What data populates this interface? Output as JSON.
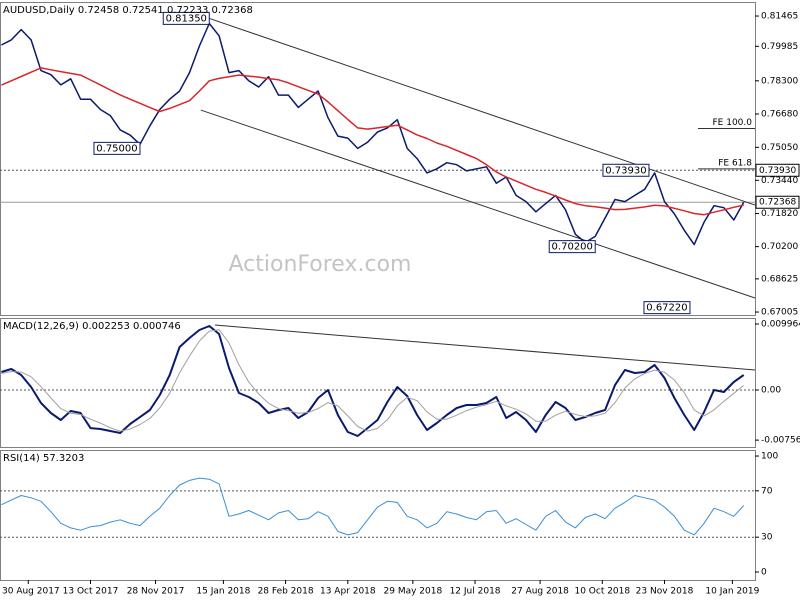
{
  "chart_data": [
    {
      "type": "line",
      "title": "AUDUSD,Daily  0.72458 0.72541 0.72233 0.72368",
      "watermark": "ActionForex.com",
      "x": [
        "2017-08-11",
        "2017-08-18",
        "2017-08-25",
        "2017-09-01",
        "2017-09-08",
        "2017-09-15",
        "2017-09-22",
        "2017-09-29",
        "2017-10-06",
        "2017-10-13",
        "2017-10-20",
        "2017-10-27",
        "2017-11-03",
        "2017-11-10",
        "2017-11-17",
        "2017-11-24",
        "2017-12-01",
        "2017-12-08",
        "2017-12-15",
        "2017-12-22",
        "2017-12-29",
        "2018-01-05",
        "2018-01-12",
        "2018-01-19",
        "2018-01-26",
        "2018-02-02",
        "2018-02-09",
        "2018-02-16",
        "2018-02-23",
        "2018-03-02",
        "2018-03-09",
        "2018-03-16",
        "2018-03-23",
        "2018-03-30",
        "2018-04-06",
        "2018-04-13",
        "2018-04-20",
        "2018-04-27",
        "2018-05-04",
        "2018-05-11",
        "2018-05-18",
        "2018-05-25",
        "2018-06-01",
        "2018-06-08",
        "2018-06-15",
        "2018-06-22",
        "2018-06-29",
        "2018-07-06",
        "2018-07-13",
        "2018-07-20",
        "2018-07-27",
        "2018-08-03",
        "2018-08-10",
        "2018-08-17",
        "2018-08-24",
        "2018-08-31",
        "2018-09-07",
        "2018-09-14",
        "2018-09-21",
        "2018-09-28",
        "2018-10-05",
        "2018-10-12",
        "2018-10-19",
        "2018-10-26",
        "2018-11-02",
        "2018-11-09",
        "2018-11-16",
        "2018-11-23",
        "2018-11-30",
        "2018-12-07",
        "2018-12-14",
        "2018-12-21",
        "2018-12-28",
        "2019-01-04",
        "2019-01-11",
        "2019-01-18"
      ],
      "xlim": [
        "2017-08-10",
        "2019-01-26"
      ],
      "xticks": [
        {
          "value": "2017-08-30",
          "label": "30 Aug 2017"
        },
        {
          "value": "2017-10-13",
          "label": "13 Oct 2017"
        },
        {
          "value": "2017-11-28",
          "label": "28 Nov 2017"
        },
        {
          "value": "2018-01-15",
          "label": "15 Jan 2018"
        },
        {
          "value": "2018-02-28",
          "label": "28 Feb 2018"
        },
        {
          "value": "2018-04-13",
          "label": "13 Apr 2018"
        },
        {
          "value": "2018-05-29",
          "label": "29 May 2018"
        },
        {
          "value": "2018-07-12",
          "label": "12 Jul 2018"
        },
        {
          "value": "2018-08-27",
          "label": "27 Aug 2018"
        },
        {
          "value": "2018-10-10",
          "label": "10 Oct 2018"
        },
        {
          "value": "2018-11-23",
          "label": "23 Nov 2018"
        },
        {
          "value": "2019-01-10",
          "label": "10 Jan 2019"
        }
      ],
      "ylim": [
        0.6686,
        0.8215
      ],
      "yticks": [
        0.81465,
        0.79985,
        {
          "value": 0.783,
          "label": "0.78300"
        },
        {
          "value": 0.7668,
          "label": "0.76680"
        },
        {
          "value": 0.7505,
          "label": "0.75050"
        },
        {
          "value": 0.7344,
          "label": "0.73440"
        },
        {
          "value": 0.7182,
          "label": "0.71820"
        },
        {
          "value": 0.702,
          "label": "0.70200"
        },
        0.68625,
        0.67005
      ],
      "series": [
        {
          "color": "#0b1b6b",
          "values": [
            0.8005,
            0.803,
            0.808,
            0.803,
            0.788,
            0.786,
            0.781,
            0.784,
            0.774,
            0.774,
            0.769,
            0.766,
            0.759,
            0.7565,
            0.752,
            0.761,
            0.769,
            0.774,
            0.778,
            0.787,
            0.8,
            0.811,
            0.805,
            0.787,
            0.788,
            0.783,
            0.78,
            0.785,
            0.776,
            0.776,
            0.77,
            0.774,
            0.778,
            0.765,
            0.756,
            0.755,
            0.75,
            0.753,
            0.758,
            0.76,
            0.764,
            0.75,
            0.745,
            0.738,
            0.74,
            0.743,
            0.742,
            0.739,
            0.74,
            0.741,
            0.733,
            0.736,
            0.727,
            0.724,
            0.719,
            0.723,
            0.727,
            0.72,
            0.708,
            0.704,
            0.707,
            0.716,
            0.725,
            0.724,
            0.727,
            0.73,
            0.738,
            0.724,
            0.718,
            0.71,
            0.703,
            0.714,
            0.722,
            0.721,
            0.715,
            0.72368
          ]
        },
        {
          "color": "#d9262b",
          "values": [
            0.7809,
            0.783,
            0.7851,
            0.7872,
            0.7893,
            0.7884,
            0.7875,
            0.7866,
            0.7858,
            0.7834,
            0.781,
            0.7785,
            0.7761,
            0.774,
            0.772,
            0.7699,
            0.768,
            0.7695,
            0.7714,
            0.7733,
            0.778,
            0.783,
            0.7842,
            0.785,
            0.7858,
            0.7853,
            0.7848,
            0.7841,
            0.7835,
            0.782,
            0.7801,
            0.7783,
            0.7765,
            0.7727,
            0.7684,
            0.7641,
            0.76,
            0.7594,
            0.76,
            0.7607,
            0.7613,
            0.759,
            0.7566,
            0.7548,
            0.7526,
            0.751,
            0.749,
            0.747,
            0.745,
            0.742,
            0.7385,
            0.736,
            0.734,
            0.732,
            0.73,
            0.7285,
            0.7267,
            0.7248,
            0.723,
            0.722,
            0.7215,
            0.7208,
            0.7201,
            0.7202,
            0.7208,
            0.7214,
            0.7222,
            0.7219,
            0.7207,
            0.7195,
            0.7182,
            0.7176,
            0.7188,
            0.72,
            0.7212,
            0.7223
          ]
        }
      ],
      "levels": [
        {
          "value": 0.7393,
          "label": "0.73930",
          "style": "dotted"
        },
        {
          "value": 0.72368,
          "style": "solid"
        }
      ],
      "fib_levels": [
        {
          "value": 0.7597,
          "label": "FE 100.0"
        },
        {
          "value": 0.74,
          "label": "FE 61.8"
        }
      ],
      "annotations": [
        {
          "value": 0.8135,
          "label": "0.81350",
          "x": "2018-01-05"
        },
        {
          "value": 0.75,
          "label": "0.75000",
          "x": "2017-11-17"
        },
        {
          "value": 0.7393,
          "label": "0.73930",
          "x": "2018-11-12"
        },
        {
          "value": 0.702,
          "label": "0.70200",
          "x": "2018-10-05"
        },
        {
          "value": 0.6722,
          "label": "0.67220",
          "x": "2018-12-11"
        }
      ],
      "trendlines": [
        {
          "x": [
            "2018-01-02",
            "2019-01-26"
          ],
          "values": [
            0.8142,
            0.7223
          ]
        },
        {
          "x": [
            "2017-12-30",
            "2019-01-26"
          ],
          "values": [
            0.7687,
            0.6769
          ]
        }
      ]
    },
    {
      "type": "line",
      "title": "MACD(12,26,9) 0.002253 0.000746",
      "ylim": [
        -0.0086,
        0.01087
      ],
      "yticks": [
        0.009964,
        {
          "value": 0,
          "label": "0.00"
        },
        -0.00756
      ],
      "levels": [
        {
          "value": 0,
          "style": "dotted"
        }
      ],
      "series": [
        {
          "color": "#0a1a6e",
          "width": 2,
          "values": [
            0.00272,
            0.00317,
            0.00226,
            0.00045,
            -0.00196,
            -0.00347,
            -0.00453,
            -0.00317,
            -0.00347,
            -0.00574,
            -0.00589,
            -0.00619,
            -0.00649,
            -0.00513,
            -0.00408,
            -0.00302,
            -0.00075,
            0.00226,
            0.00649,
            0.00785,
            0.00906,
            0.00966,
            0.00845,
            0.00332,
            -0.00045,
            -0.00106,
            -0.00196,
            -0.00347,
            -0.00302,
            -0.00272,
            -0.00423,
            -0.00332,
            -0.00121,
            0,
            -0.00377,
            -0.00634,
            -0.00694,
            -0.00574,
            -0.00453,
            -0.00181,
            0.00045,
            -0.00091,
            -0.00377,
            -0.00604,
            -0.00498,
            -0.00377,
            -0.00272,
            -0.00226,
            -0.00226,
            -0.00196,
            -0.00106,
            -0.00423,
            -0.00332,
            -0.00453,
            -0.00634,
            -0.00377,
            -0.00181,
            -0.00272,
            -0.00453,
            -0.00408,
            -0.00347,
            -0.00302,
            0.00075,
            0.00302,
            0.00257,
            0.00272,
            0.00377,
            0.00181,
            -0.00121,
            -0.00377,
            -0.00604,
            -0.00332,
            0,
            -0.0003,
            0.00121,
            0.00226
          ]
        },
        {
          "color": "#a0a0a0",
          "width": 1,
          "values": [
            0.0025,
            0.0028,
            0.0027,
            0.002,
            0.0005,
            -0.0012,
            -0.0028,
            -0.0035,
            -0.0037,
            -0.0044,
            -0.005,
            -0.0057,
            -0.0062,
            -0.0059,
            -0.0052,
            -0.0043,
            -0.0027,
            -0.0005,
            0.0026,
            0.0051,
            0.0074,
            0.0089,
            0.0091,
            0.0071,
            0.0038,
            0.0012,
            -0.0006,
            -0.002,
            -0.0028,
            -0.0031,
            -0.0035,
            -0.0034,
            -0.0028,
            -0.0019,
            -0.0024,
            -0.0039,
            -0.0055,
            -0.0062,
            -0.0058,
            -0.0045,
            -0.0024,
            -0.0011,
            -0.0016,
            -0.0033,
            -0.0044,
            -0.0044,
            -0.0038,
            -0.0031,
            -0.0026,
            -0.0022,
            -0.0017,
            -0.0024,
            -0.0029,
            -0.0036,
            -0.0047,
            -0.0047,
            -0.0038,
            -0.0032,
            -0.0037,
            -0.004,
            -0.0039,
            -0.0035,
            -0.0019,
            0.0003,
            0.0017,
            0.0025,
            0.003,
            0.0027,
            0.0015,
            -0.0004,
            -0.003,
            -0.0039,
            -0.003,
            -0.0017,
            -0.0005,
            0.0007
          ]
        }
      ],
      "trendlines": [
        {
          "x": [
            "2018-01-09",
            "2019-01-26"
          ],
          "values": [
            0.00981,
            0.00302
          ]
        }
      ]
    },
    {
      "type": "line",
      "title": "RSI(14) 57.3203",
      "ylim": [
        -6.9,
        105.2
      ],
      "yticks": [
        100,
        70,
        30,
        0
      ],
      "levels": [
        {
          "value": 70,
          "style": "dotted"
        },
        {
          "value": 30,
          "style": "dotted"
        }
      ],
      "series": [
        {
          "color": "#3a8fd6",
          "width": 1,
          "values": [
            58,
            62,
            66,
            64,
            61,
            52,
            42,
            38,
            36,
            39,
            40,
            43,
            45,
            42,
            40,
            48,
            55,
            66,
            75,
            79,
            81,
            80,
            76,
            48,
            50,
            53,
            49,
            45,
            51,
            53,
            45,
            46,
            52,
            48,
            35,
            32,
            34,
            45,
            56,
            61,
            60,
            48,
            45,
            38,
            42,
            52,
            50,
            47,
            45,
            52,
            53,
            42,
            46,
            41,
            36,
            48,
            53,
            43,
            38,
            47,
            50,
            46,
            55,
            60,
            66,
            64,
            62,
            56,
            48,
            36,
            32,
            42,
            55,
            52,
            48,
            57.3203
          ]
        }
      ]
    }
  ]
}
